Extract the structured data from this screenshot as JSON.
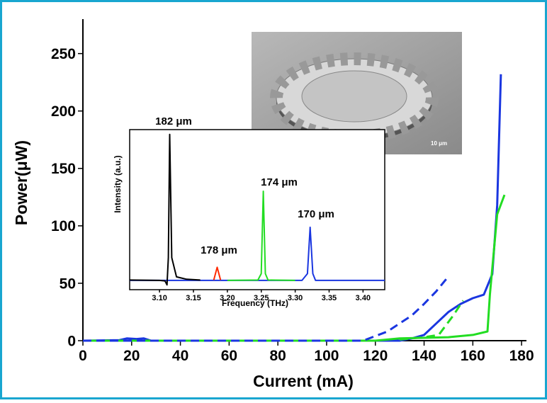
{
  "chart_data": [
    {
      "type": "line",
      "xlabel": "Current (mA)",
      "ylabel": "Power(μW)",
      "xlim": [
        0,
        182
      ],
      "ylim": [
        0,
        280
      ],
      "xticks": [
        0,
        20,
        40,
        60,
        80,
        100,
        120,
        140,
        160,
        180
      ],
      "yticks": [
        0,
        50,
        100,
        150,
        200,
        250
      ],
      "series": [
        {
          "color": "#1a36e0",
          "dash": false,
          "x": [
            0,
            15,
            18,
            22,
            25,
            28,
            100,
            130,
            135,
            140,
            145,
            150,
            155,
            160,
            164.5,
            168,
            170,
            171.5
          ],
          "values": [
            0,
            0.5,
            2,
            1.5,
            2,
            0,
            0,
            0,
            2,
            5,
            15,
            25,
            32,
            37,
            40,
            58,
            118,
            232
          ]
        },
        {
          "color": "#22dd22",
          "dash": false,
          "x": [
            0,
            120,
            130,
            150,
            160,
            166,
            167,
            170,
            173
          ],
          "values": [
            0,
            0,
            2,
            3,
            5,
            8,
            40,
            110,
            127
          ]
        },
        {
          "color": "#1a36e0",
          "dash": true,
          "x": [
            0,
            115,
            125,
            135,
            140,
            145,
            150
          ],
          "values": [
            0,
            0,
            8,
            22,
            32,
            43,
            56
          ]
        },
        {
          "color": "#22dd22",
          "dash": true,
          "x": [
            130,
            140,
            146,
            152,
            156
          ],
          "values": [
            1,
            3,
            5,
            22,
            35
          ]
        }
      ]
    },
    {
      "type": "line",
      "xlabel": "Frequency (THz)",
      "ylabel": "Intensity (a.u.)",
      "xlim": [
        3.056,
        3.432
      ],
      "ylim": [
        0,
        1
      ],
      "xticks": [
        {
          "value": 3.1,
          "label": "3.10"
        },
        {
          "value": 3.15,
          "label": "3.15"
        },
        {
          "value": 3.2,
          "label": "3.20"
        },
        {
          "value": 3.25,
          "label": "3.25"
        },
        {
          "value": 3.3,
          "label": "3.30"
        },
        {
          "value": 3.35,
          "label": "3.35"
        },
        {
          "value": 3.4,
          "label": "3.40"
        }
      ],
      "annotations": [
        "182 μm",
        "178 μm",
        "174 μm",
        "170 μm"
      ],
      "image_label": "10 μm",
      "series": [
        {
          "color": "#1a36e0",
          "dash": false,
          "x": [
            3.056,
            3.31,
            3.318,
            3.322,
            3.326,
            3.33,
            3.432
          ],
          "values": [
            0.058,
            0.058,
            0.1,
            0.39,
            0.1,
            0.058,
            0.058
          ]
        },
        {
          "color": "#22dd22",
          "dash": false,
          "x": [
            3.2,
            3.245,
            3.25,
            3.253,
            3.256,
            3.26,
            3.3
          ],
          "values": [
            0.058,
            0.06,
            0.1,
            0.615,
            0.1,
            0.06,
            0.058
          ]
        },
        {
          "color": "#ff2a00",
          "dash": false,
          "x": [
            3.18,
            3.185,
            3.19
          ],
          "values": [
            0.06,
            0.14,
            0.06
          ]
        },
        {
          "color": "#000000",
          "dash": false,
          "x": [
            3.056,
            3.1,
            3.108,
            3.111,
            3.113,
            3.115,
            3.118,
            3.125,
            3.14,
            3.16
          ],
          "values": [
            0.06,
            0.058,
            0.055,
            0.03,
            0.2,
            0.97,
            0.2,
            0.08,
            0.065,
            0.06
          ]
        }
      ]
    }
  ]
}
